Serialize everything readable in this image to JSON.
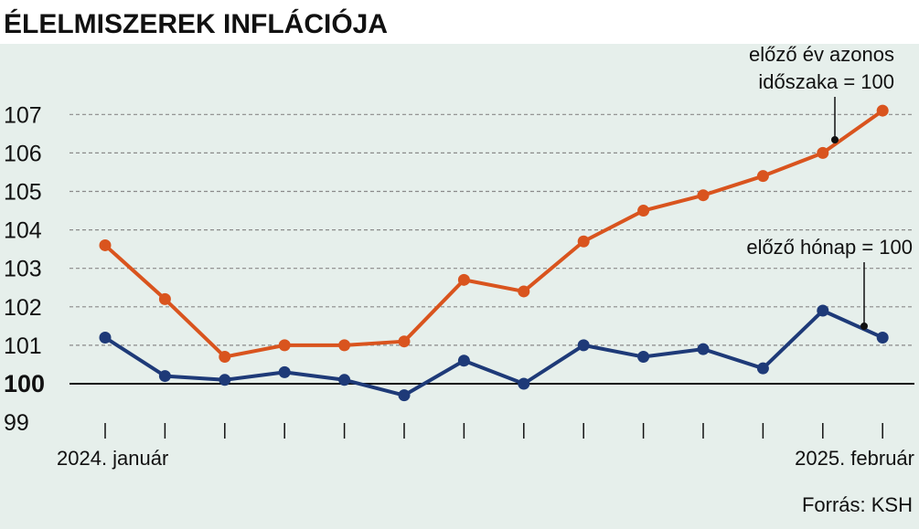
{
  "chart_data": {
    "type": "line",
    "title": "ÉLELMISZEREK INFLÁCIÓJA",
    "x_labels_shown": [
      "2024. január",
      "2025. február"
    ],
    "x_count": 14,
    "ylim": [
      99,
      107.9
    ],
    "yticks": [
      99,
      100,
      101,
      102,
      103,
      104,
      105,
      106,
      107
    ],
    "baseline": 100,
    "grid": true,
    "series": [
      {
        "name": "előző év azonos időszaka = 100",
        "color": "#d9541e",
        "values": [
          103.6,
          102.2,
          100.7,
          101.0,
          101.0,
          101.1,
          102.7,
          102.4,
          103.7,
          104.5,
          104.9,
          105.4,
          106.0,
          107.1
        ]
      },
      {
        "name": "előző hónap = 100",
        "color": "#1e3a78",
        "values": [
          101.2,
          100.2,
          100.1,
          100.3,
          100.1,
          99.7,
          100.6,
          100.0,
          101.0,
          100.7,
          100.9,
          100.4,
          101.9,
          101.2
        ]
      }
    ],
    "annotations": [
      {
        "lines": [
          "előző év",
          "azonos",
          "időszaka = 100"
        ],
        "series": 0
      },
      {
        "lines": [
          "előző hónap = 100"
        ],
        "series": 1
      }
    ],
    "source": "Forrás: KSH"
  },
  "colors": {
    "plot_background": "#e6efeb",
    "gridline": "#8a8a8a",
    "baseline": "#111111"
  }
}
